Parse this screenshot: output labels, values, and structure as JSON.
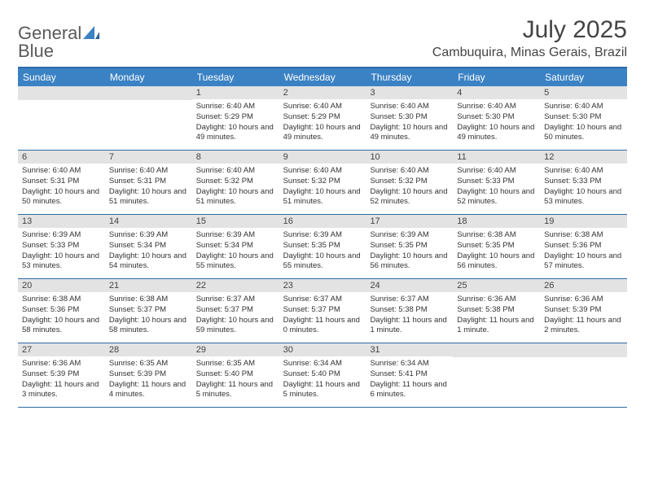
{
  "logo": {
    "word1": "General",
    "word2": "Blue"
  },
  "title": "July 2025",
  "subtitle": "Cambuquira, Minas Gerais, Brazil",
  "accent_color": "#3b82c4",
  "header_bg": "#3b82c4",
  "header_fg": "#ffffff",
  "daynum_bg": "#e3e3e3",
  "border_color": "#2f6aa8",
  "columns": [
    "Sunday",
    "Monday",
    "Tuesday",
    "Wednesday",
    "Thursday",
    "Friday",
    "Saturday"
  ],
  "weeks": [
    [
      {
        "n": "",
        "sr": "",
        "ss": "",
        "dl": ""
      },
      {
        "n": "",
        "sr": "",
        "ss": "",
        "dl": ""
      },
      {
        "n": "1",
        "sr": "Sunrise: 6:40 AM",
        "ss": "Sunset: 5:29 PM",
        "dl": "Daylight: 10 hours and 49 minutes."
      },
      {
        "n": "2",
        "sr": "Sunrise: 6:40 AM",
        "ss": "Sunset: 5:29 PM",
        "dl": "Daylight: 10 hours and 49 minutes."
      },
      {
        "n": "3",
        "sr": "Sunrise: 6:40 AM",
        "ss": "Sunset: 5:30 PM",
        "dl": "Daylight: 10 hours and 49 minutes."
      },
      {
        "n": "4",
        "sr": "Sunrise: 6:40 AM",
        "ss": "Sunset: 5:30 PM",
        "dl": "Daylight: 10 hours and 49 minutes."
      },
      {
        "n": "5",
        "sr": "Sunrise: 6:40 AM",
        "ss": "Sunset: 5:30 PM",
        "dl": "Daylight: 10 hours and 50 minutes."
      }
    ],
    [
      {
        "n": "6",
        "sr": "Sunrise: 6:40 AM",
        "ss": "Sunset: 5:31 PM",
        "dl": "Daylight: 10 hours and 50 minutes."
      },
      {
        "n": "7",
        "sr": "Sunrise: 6:40 AM",
        "ss": "Sunset: 5:31 PM",
        "dl": "Daylight: 10 hours and 51 minutes."
      },
      {
        "n": "8",
        "sr": "Sunrise: 6:40 AM",
        "ss": "Sunset: 5:32 PM",
        "dl": "Daylight: 10 hours and 51 minutes."
      },
      {
        "n": "9",
        "sr": "Sunrise: 6:40 AM",
        "ss": "Sunset: 5:32 PM",
        "dl": "Daylight: 10 hours and 51 minutes."
      },
      {
        "n": "10",
        "sr": "Sunrise: 6:40 AM",
        "ss": "Sunset: 5:32 PM",
        "dl": "Daylight: 10 hours and 52 minutes."
      },
      {
        "n": "11",
        "sr": "Sunrise: 6:40 AM",
        "ss": "Sunset: 5:33 PM",
        "dl": "Daylight: 10 hours and 52 minutes."
      },
      {
        "n": "12",
        "sr": "Sunrise: 6:40 AM",
        "ss": "Sunset: 5:33 PM",
        "dl": "Daylight: 10 hours and 53 minutes."
      }
    ],
    [
      {
        "n": "13",
        "sr": "Sunrise: 6:39 AM",
        "ss": "Sunset: 5:33 PM",
        "dl": "Daylight: 10 hours and 53 minutes."
      },
      {
        "n": "14",
        "sr": "Sunrise: 6:39 AM",
        "ss": "Sunset: 5:34 PM",
        "dl": "Daylight: 10 hours and 54 minutes."
      },
      {
        "n": "15",
        "sr": "Sunrise: 6:39 AM",
        "ss": "Sunset: 5:34 PM",
        "dl": "Daylight: 10 hours and 55 minutes."
      },
      {
        "n": "16",
        "sr": "Sunrise: 6:39 AM",
        "ss": "Sunset: 5:35 PM",
        "dl": "Daylight: 10 hours and 55 minutes."
      },
      {
        "n": "17",
        "sr": "Sunrise: 6:39 AM",
        "ss": "Sunset: 5:35 PM",
        "dl": "Daylight: 10 hours and 56 minutes."
      },
      {
        "n": "18",
        "sr": "Sunrise: 6:38 AM",
        "ss": "Sunset: 5:35 PM",
        "dl": "Daylight: 10 hours and 56 minutes."
      },
      {
        "n": "19",
        "sr": "Sunrise: 6:38 AM",
        "ss": "Sunset: 5:36 PM",
        "dl": "Daylight: 10 hours and 57 minutes."
      }
    ],
    [
      {
        "n": "20",
        "sr": "Sunrise: 6:38 AM",
        "ss": "Sunset: 5:36 PM",
        "dl": "Daylight: 10 hours and 58 minutes."
      },
      {
        "n": "21",
        "sr": "Sunrise: 6:38 AM",
        "ss": "Sunset: 5:37 PM",
        "dl": "Daylight: 10 hours and 58 minutes."
      },
      {
        "n": "22",
        "sr": "Sunrise: 6:37 AM",
        "ss": "Sunset: 5:37 PM",
        "dl": "Daylight: 10 hours and 59 minutes."
      },
      {
        "n": "23",
        "sr": "Sunrise: 6:37 AM",
        "ss": "Sunset: 5:37 PM",
        "dl": "Daylight: 11 hours and 0 minutes."
      },
      {
        "n": "24",
        "sr": "Sunrise: 6:37 AM",
        "ss": "Sunset: 5:38 PM",
        "dl": "Daylight: 11 hours and 1 minute."
      },
      {
        "n": "25",
        "sr": "Sunrise: 6:36 AM",
        "ss": "Sunset: 5:38 PM",
        "dl": "Daylight: 11 hours and 1 minute."
      },
      {
        "n": "26",
        "sr": "Sunrise: 6:36 AM",
        "ss": "Sunset: 5:39 PM",
        "dl": "Daylight: 11 hours and 2 minutes."
      }
    ],
    [
      {
        "n": "27",
        "sr": "Sunrise: 6:36 AM",
        "ss": "Sunset: 5:39 PM",
        "dl": "Daylight: 11 hours and 3 minutes."
      },
      {
        "n": "28",
        "sr": "Sunrise: 6:35 AM",
        "ss": "Sunset: 5:39 PM",
        "dl": "Daylight: 11 hours and 4 minutes."
      },
      {
        "n": "29",
        "sr": "Sunrise: 6:35 AM",
        "ss": "Sunset: 5:40 PM",
        "dl": "Daylight: 11 hours and 5 minutes."
      },
      {
        "n": "30",
        "sr": "Sunrise: 6:34 AM",
        "ss": "Sunset: 5:40 PM",
        "dl": "Daylight: 11 hours and 5 minutes."
      },
      {
        "n": "31",
        "sr": "Sunrise: 6:34 AM",
        "ss": "Sunset: 5:41 PM",
        "dl": "Daylight: 11 hours and 6 minutes."
      },
      {
        "n": "",
        "sr": "",
        "ss": "",
        "dl": ""
      },
      {
        "n": "",
        "sr": "",
        "ss": "",
        "dl": ""
      }
    ]
  ]
}
